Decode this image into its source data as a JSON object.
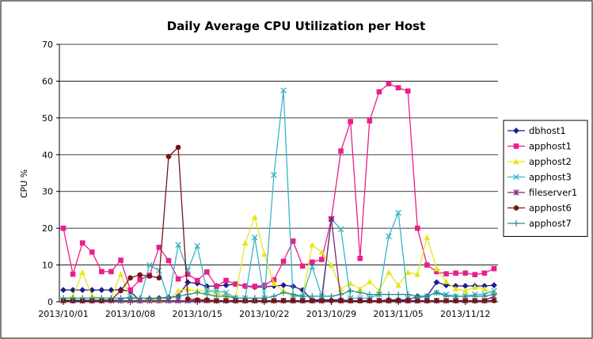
{
  "chart_data": {
    "type": "line",
    "title": "Daily Average CPU Utilization per Host",
    "xlabel": "",
    "ylabel": "CPU %",
    "ylim": [
      0,
      70
    ],
    "yticks": [
      0,
      10,
      20,
      30,
      40,
      50,
      60,
      70
    ],
    "x_count": 46,
    "xtick_labels": [
      {
        "index": 0,
        "label": "2013/10/01"
      },
      {
        "index": 7,
        "label": "2013/10/08"
      },
      {
        "index": 14,
        "label": "2013/10/15"
      },
      {
        "index": 21,
        "label": "2013/10/22"
      },
      {
        "index": 28,
        "label": "2013/10/29"
      },
      {
        "index": 35,
        "label": "2013/11/05"
      },
      {
        "index": 42,
        "label": "2013/11/12"
      }
    ],
    "grid": {
      "horizontal": true,
      "vertical": false
    },
    "legend_position": "right",
    "series": [
      {
        "name": "dbhost1",
        "color": "#1c1c8c",
        "marker": "diamond",
        "values": [
          3.2,
          3.2,
          3.2,
          3.2,
          3.2,
          3.2,
          3.3,
          2.8,
          0.3,
          0.8,
          1.0,
          1.2,
          1.5,
          5.3,
          5.0,
          4.2,
          4.3,
          4.5,
          4.8,
          4.2,
          4.0,
          4.0,
          4.3,
          4.5,
          4.2,
          3.2,
          0.5,
          0.5,
          0.5,
          0.5,
          0.3,
          0.3,
          0.3,
          0.3,
          0.5,
          0.5,
          0.5,
          1.5,
          1.5,
          5.3,
          4.5,
          4.3,
          4.3,
          4.3,
          4.3,
          4.5
        ]
      },
      {
        "name": "apphost1",
        "color": "#ea1e8c",
        "marker": "square",
        "values": [
          20,
          7.5,
          16,
          13.5,
          8.2,
          8.2,
          11.3,
          3.2,
          6.0,
          7.2,
          14.8,
          11.2,
          6.2,
          7.5,
          5.8,
          8.1,
          4.2,
          5.8,
          4.8,
          4.3,
          4.2,
          4.5,
          6.0,
          11.0,
          16.5,
          9.7,
          10.8,
          11.5,
          22.5,
          41.0,
          49.0,
          11.8,
          49.2,
          57.1,
          59.3,
          58.2,
          57.3,
          20.0,
          10.0,
          8.2,
          7.6,
          7.8,
          7.8,
          7.4,
          7.8,
          9.0
        ]
      },
      {
        "name": "apphost2",
        "color": "#e6e61a",
        "marker": "triangle",
        "values": [
          0.5,
          1.5,
          8.0,
          1.5,
          1.0,
          1.0,
          7.5,
          1.0,
          0.5,
          0.5,
          0.5,
          0.5,
          3.0,
          3.5,
          3.0,
          3.0,
          2.5,
          1.5,
          1.5,
          16.0,
          23.0,
          13.0,
          5.0,
          3.0,
          2.0,
          1.5,
          15.5,
          13.5,
          10.0,
          3.5,
          5.0,
          3.5,
          5.5,
          3.0,
          8.0,
          4.5,
          8.0,
          7.5,
          17.5,
          9.0,
          5.5,
          3.5,
          3.0,
          4.0,
          3.5,
          2.5
        ]
      },
      {
        "name": "apphost3",
        "color": "#3ab4c8",
        "marker": "x",
        "values": [
          0.5,
          0.5,
          0.5,
          0.5,
          0.5,
          0.5,
          0.5,
          1.5,
          0.5,
          10.0,
          8.5,
          0.5,
          15.5,
          8.5,
          15.2,
          3.0,
          3.0,
          2.5,
          1.0,
          1.0,
          17.5,
          1.0,
          34.5,
          57.5,
          1.5,
          1.5,
          9.5,
          1.5,
          22.5,
          19.7,
          1.0,
          1.0,
          1.0,
          2.0,
          17.8,
          24.2,
          1.0,
          1.0,
          1.5,
          2.5,
          2.0,
          1.5,
          1.5,
          2.0,
          2.0,
          3.0
        ]
      },
      {
        "name": "fileserver1",
        "color": "#7a287a",
        "marker": "star",
        "values": [
          0.3,
          0.3,
          0.3,
          0.3,
          0.3,
          0.3,
          0.3,
          0.3,
          0.3,
          0.3,
          0.3,
          0.3,
          0.3,
          0.3,
          0.3,
          0.3,
          0.3,
          0.3,
          0.3,
          0.3,
          0.3,
          0.3,
          0.3,
          0.3,
          0.3,
          0.3,
          0.3,
          0.3,
          22.5,
          0.3,
          0.3,
          0.3,
          0.3,
          0.3,
          0.3,
          0.3,
          0.3,
          0.3,
          0.3,
          0.3,
          0.3,
          0.3,
          0.3,
          0.3,
          0.3,
          1.5
        ]
      },
      {
        "name": "apphost6",
        "color": "#7a1414",
        "marker": "circle",
        "values": [
          0.3,
          0.3,
          0.3,
          0.3,
          0.3,
          0.5,
          3.0,
          6.5,
          7.3,
          7.0,
          6.5,
          39.5,
          42.0,
          0.8,
          0.5,
          0.5,
          0.3,
          0.3,
          0.3,
          0.3,
          0.3,
          0.3,
          0.3,
          0.3,
          0.3,
          0.3,
          0.3,
          0.3,
          0.3,
          0.3,
          0.3,
          0.3,
          0.3,
          0.3,
          0.3,
          0.3,
          0.3,
          0.3,
          0.3,
          0.3,
          0.3,
          0.3,
          0.3,
          0.3,
          0.3,
          0.3
        ]
      },
      {
        "name": "apphost7",
        "color": "#2e8c8c",
        "marker": "plus",
        "values": [
          1.0,
          1.0,
          1.0,
          1.0,
          1.0,
          1.0,
          1.0,
          1.0,
          1.0,
          1.0,
          1.0,
          1.0,
          1.5,
          2.0,
          2.5,
          2.0,
          1.5,
          1.5,
          1.0,
          1.0,
          1.0,
          1.0,
          1.5,
          2.5,
          2.0,
          1.5,
          1.5,
          1.5,
          1.5,
          2.0,
          3.0,
          2.5,
          2.0,
          2.0,
          2.0,
          2.0,
          2.0,
          1.5,
          1.5,
          2.5,
          1.5,
          1.5,
          1.5,
          1.5,
          1.5,
          2.0
        ]
      }
    ]
  }
}
